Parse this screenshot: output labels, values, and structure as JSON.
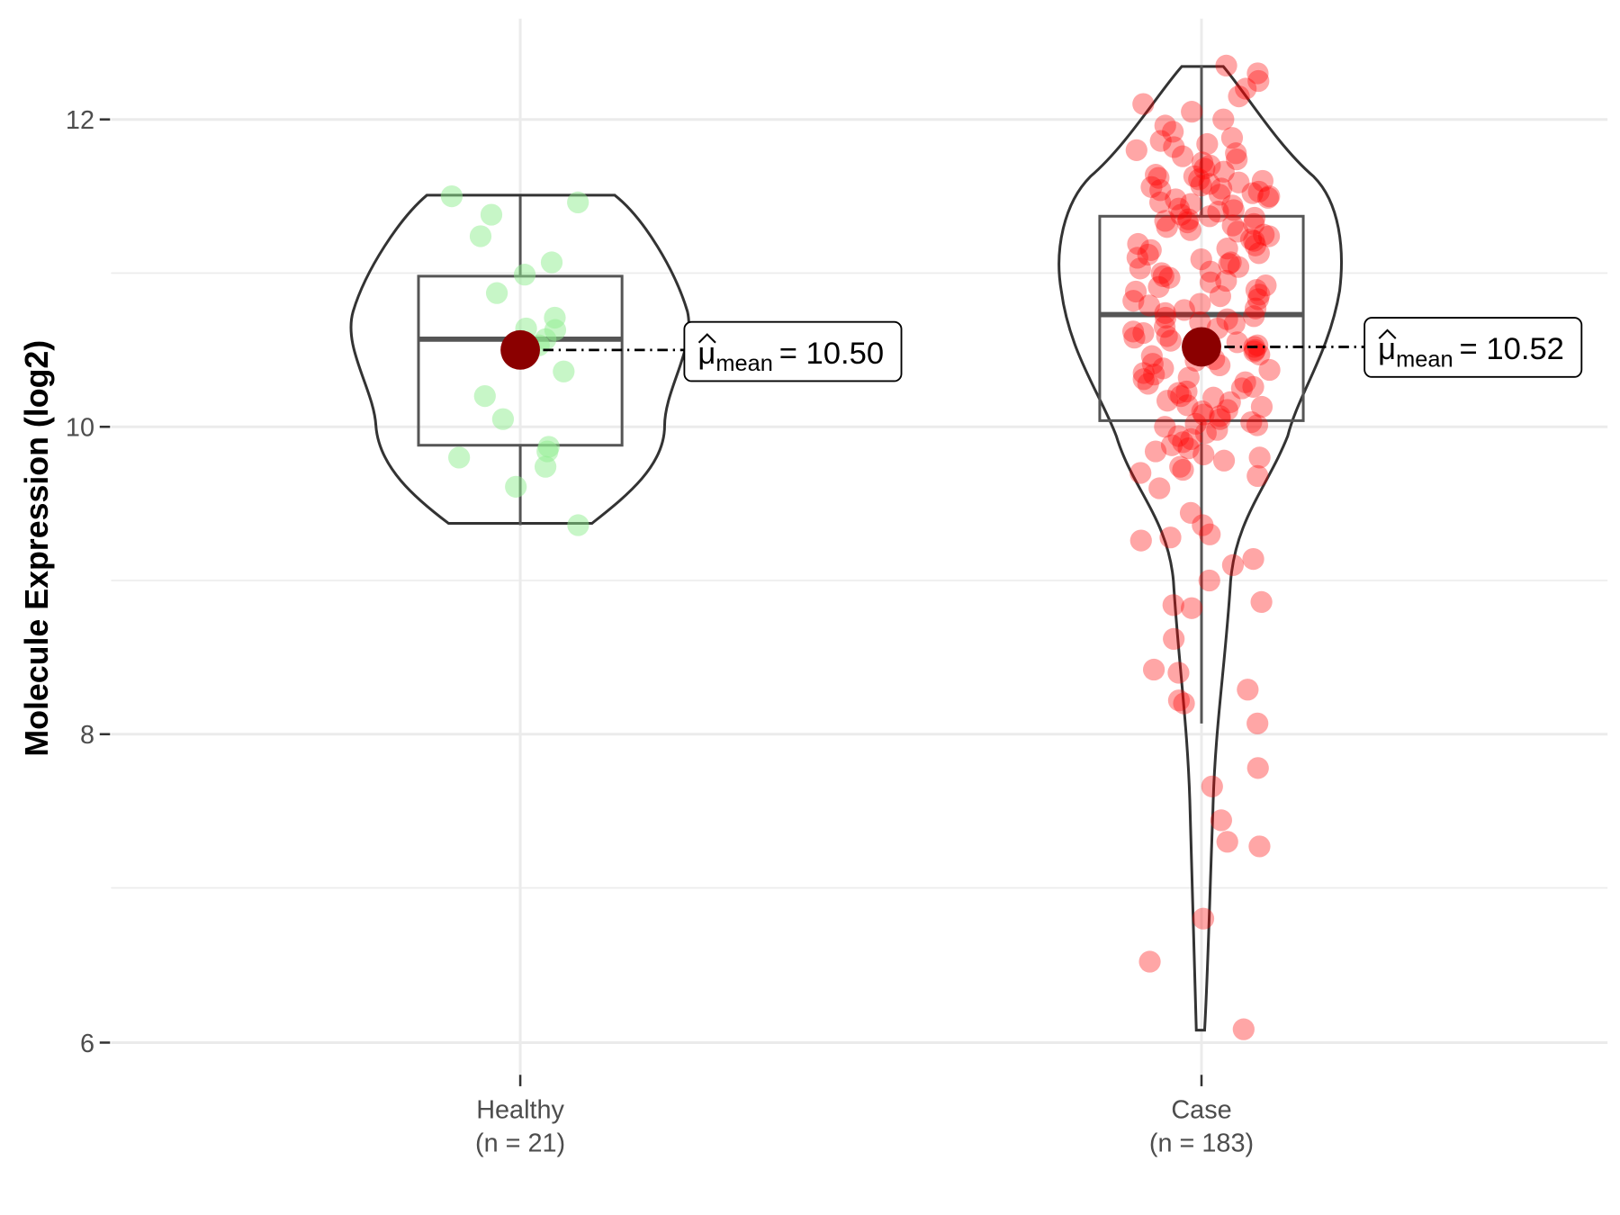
{
  "chart_data": {
    "type": "violin",
    "title": "",
    "xlabel": "",
    "ylabel": "Molecule Expression (log2)",
    "ylim": [
      5.7,
      12.65
    ],
    "yticks": [
      "6",
      "8",
      "10",
      "12"
    ],
    "grid": true,
    "groups": [
      {
        "name": "Healthy",
        "n_label": "(n = 21)",
        "color": "#90ee90",
        "mean": 10.5,
        "mean_label_value": "= 10.50",
        "box": {
          "q1": 9.88,
          "median": 10.57,
          "q3": 10.98,
          "whisker_low": 9.36,
          "whisker_high": 11.5
        },
        "values": [
          11.5,
          11.46,
          11.38,
          11.24,
          11.07,
          10.99,
          10.87,
          10.71,
          10.63,
          10.64,
          10.57,
          10.53,
          10.36,
          10.2,
          10.05,
          9.87,
          9.84,
          9.8,
          9.74,
          9.61,
          9.36
        ]
      },
      {
        "name": "Case",
        "n_label": "(n = 183)",
        "color": "#ff0000",
        "mean": 10.52,
        "mean_label_value": "= 10.52",
        "box": {
          "q1": 10.04,
          "median": 10.73,
          "q3": 11.37,
          "whisker_low": 8.07,
          "whisker_high": 12.35
        },
        "values": [
          6.08,
          6.52,
          6.8,
          7.27,
          7.3,
          7.44,
          7.66,
          7.78,
          8.07,
          8.2,
          8.22,
          8.29,
          8.4,
          8.42,
          8.62,
          8.82,
          8.84,
          8.86,
          9.0,
          9.1,
          9.14,
          9.26,
          9.28,
          9.3,
          9.36,
          9.44,
          9.6,
          9.68,
          9.7,
          9.72,
          9.74,
          9.78,
          9.8,
          9.82,
          9.84,
          9.86,
          9.88,
          9.9,
          9.92,
          9.94,
          9.96,
          9.98,
          10.0,
          10.01,
          10.02,
          10.03,
          10.05,
          10.07,
          10.08,
          10.1,
          10.11,
          10.13,
          10.14,
          10.16,
          10.17,
          10.19,
          10.2,
          10.22,
          10.23,
          10.25,
          10.26,
          10.28,
          10.29,
          10.31,
          10.32,
          10.34,
          10.35,
          10.37,
          10.38,
          10.4,
          10.41,
          10.43,
          10.44,
          10.46,
          10.47,
          10.49,
          10.5,
          10.52,
          10.53,
          10.55,
          10.56,
          10.58,
          10.59,
          10.61,
          10.62,
          10.64,
          10.65,
          10.67,
          10.68,
          10.7,
          10.71,
          10.72,
          10.74,
          10.76,
          10.77,
          10.79,
          10.8,
          10.82,
          10.83,
          10.85,
          10.86,
          10.88,
          10.89,
          10.91,
          10.92,
          10.94,
          10.95,
          10.97,
          10.98,
          11.0,
          11.01,
          11.03,
          11.04,
          11.06,
          11.07,
          11.09,
          11.1,
          11.12,
          11.13,
          11.15,
          11.16,
          11.18,
          11.19,
          11.21,
          11.22,
          11.24,
          11.25,
          11.27,
          11.28,
          11.3,
          11.31,
          11.32,
          11.33,
          11.34,
          11.35,
          11.36,
          11.37,
          11.38,
          11.4,
          11.41,
          11.42,
          11.44,
          11.45,
          11.46,
          11.48,
          11.49,
          11.5,
          11.51,
          11.52,
          11.53,
          11.54,
          11.55,
          11.56,
          11.57,
          11.58,
          11.59,
          11.6,
          11.61,
          11.62,
          11.63,
          11.64,
          11.66,
          11.68,
          11.7,
          11.72,
          11.74,
          11.76,
          11.78,
          11.8,
          11.82,
          11.84,
          11.86,
          11.88,
          11.92,
          11.96,
          12.0,
          12.05,
          12.1,
          12.15,
          12.2,
          12.25,
          12.3,
          12.35
        ]
      }
    ],
    "mean_label_symbol": "μ",
    "mean_label_subscript": "mean",
    "mean_point_color": "#8b0000"
  }
}
